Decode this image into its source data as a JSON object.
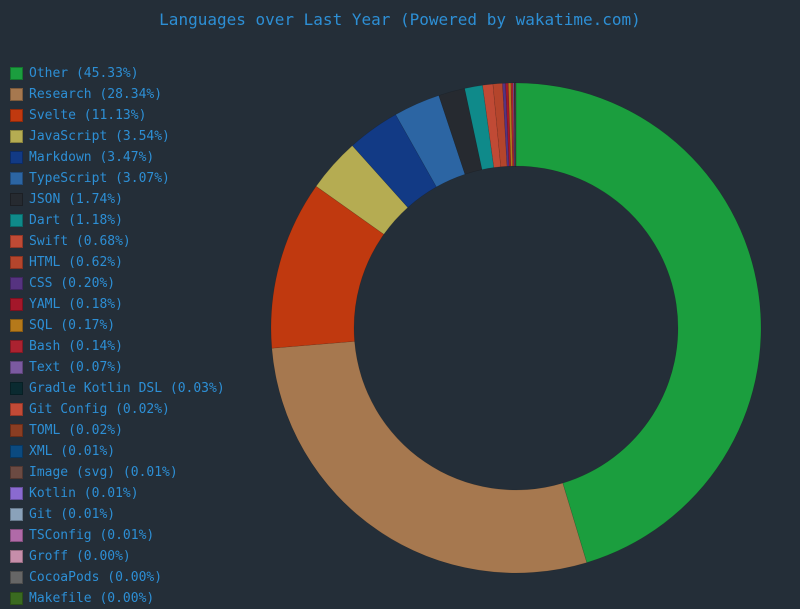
{
  "chart_data": {
    "type": "pie",
    "variant": "donut",
    "title": "Languages over Last Year (Powered by wakatime.com)",
    "legend_placement": "left",
    "slices": [
      {
        "label": "Other (45.33%)",
        "name": "Other",
        "value": 45.33,
        "color": "#1b9e3e"
      },
      {
        "label": "Research (28.34%)",
        "name": "Research",
        "value": 28.34,
        "color": "#a6784f"
      },
      {
        "label": "Svelte (11.13%)",
        "name": "Svelte",
        "value": 11.13,
        "color": "#c0390f"
      },
      {
        "label": "JavaScript (3.54%)",
        "name": "JavaScript",
        "value": 3.54,
        "color": "#b5ac52"
      },
      {
        "label": "Markdown (3.47%)",
        "name": "Markdown",
        "value": 3.47,
        "color": "#123a85"
      },
      {
        "label": "TypeScript (3.07%)",
        "name": "TypeScript",
        "value": 3.07,
        "color": "#2c65a3"
      },
      {
        "label": "JSON (1.74%)",
        "name": "JSON",
        "value": 1.74,
        "color": "#262a30"
      },
      {
        "label": "Dart (1.18%)",
        "name": "Dart",
        "value": 1.18,
        "color": "#0f8a8a"
      },
      {
        "label": "Swift (0.68%)",
        "name": "Swift",
        "value": 0.68,
        "color": "#c04a35"
      },
      {
        "label": "HTML (0.62%)",
        "name": "HTML",
        "value": 0.62,
        "color": "#b4452c"
      },
      {
        "label": "CSS (0.20%)",
        "name": "CSS",
        "value": 0.2,
        "color": "#563380"
      },
      {
        "label": "YAML (0.18%)",
        "name": "YAML",
        "value": 0.18,
        "color": "#a4172a"
      },
      {
        "label": "SQL (0.17%)",
        "name": "SQL",
        "value": 0.17,
        "color": "#b5791a"
      },
      {
        "label": "Bash (0.14%)",
        "name": "Bash",
        "value": 0.14,
        "color": "#ab2230"
      },
      {
        "label": "Text (0.07%)",
        "name": "Text",
        "value": 0.07,
        "color": "#7b5aa0"
      },
      {
        "label": "Gradle Kotlin DSL (0.03%)",
        "name": "Gradle Kotlin DSL",
        "value": 0.03,
        "color": "#0a2a30"
      },
      {
        "label": "Git Config (0.02%)",
        "name": "Git Config",
        "value": 0.02,
        "color": "#c24a36"
      },
      {
        "label": "TOML (0.02%)",
        "name": "TOML",
        "value": 0.02,
        "color": "#8a3d22"
      },
      {
        "label": "XML (0.01%)",
        "name": "XML",
        "value": 0.01,
        "color": "#0b4a80"
      },
      {
        "label": "Image (svg) (0.01%)",
        "name": "Image (svg)",
        "value": 0.01,
        "color": "#6b4a42"
      },
      {
        "label": "Kotlin (0.01%)",
        "name": "Kotlin",
        "value": 0.01,
        "color": "#8a6ad0"
      },
      {
        "label": "Git (0.01%)",
        "name": "Git",
        "value": 0.01,
        "color": "#8aa2ba"
      },
      {
        "label": "TSConfig (0.01%)",
        "name": "TSConfig",
        "value": 0.01,
        "color": "#b06aa8"
      },
      {
        "label": "Groff (0.00%)",
        "name": "Groff",
        "value": 0.0,
        "color": "#c68eaa"
      },
      {
        "label": "CocoaPods (0.00%)",
        "name": "CocoaPods",
        "value": 0.0,
        "color": "#666666"
      },
      {
        "label": "Makefile (0.00%)",
        "name": "Makefile",
        "value": 0.0,
        "color": "#3a6a20"
      }
    ]
  }
}
